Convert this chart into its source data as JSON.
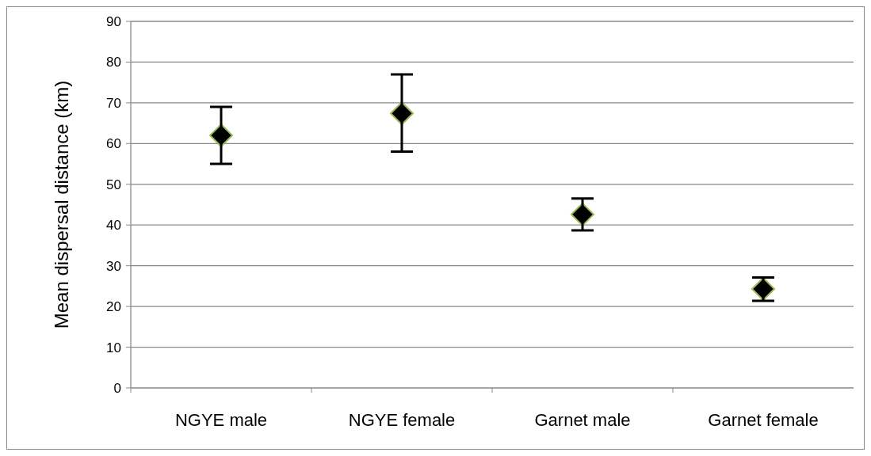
{
  "chart_data": {
    "type": "scatter",
    "ylabel": "Mean dispersal distance (km)",
    "categories": [
      "NGYE male",
      "NGYE female",
      "Garnet male",
      "Garnet female"
    ],
    "series": [
      {
        "color": "#000000",
        "values": [
          62,
          67.4,
          42.6,
          24.3
        ],
        "errors": [
          [
            55,
            69
          ],
          [
            58,
            77
          ],
          [
            38.7,
            46.5
          ],
          [
            21.4,
            27.1
          ]
        ]
      }
    ],
    "ylim": [
      0,
      90
    ],
    "yticks": [
      0,
      10,
      20,
      30,
      40,
      50,
      60,
      70,
      80,
      90
    ],
    "grid": "y",
    "marker": "diamond"
  }
}
